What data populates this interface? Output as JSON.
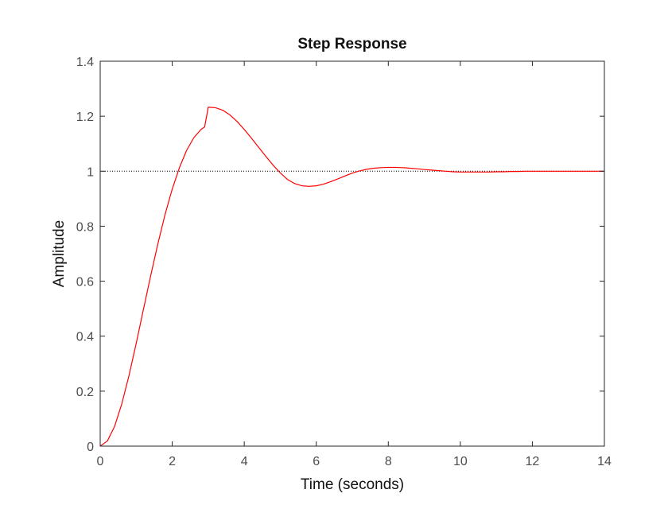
{
  "colors": {
    "background": "#ffffff",
    "axes": "#262626",
    "tick_text": "#4d4d4d",
    "response_line": "#ff0000",
    "reference_line": "#000000"
  },
  "chart_data": {
    "type": "line",
    "title": "Step Response",
    "xlabel": "Time (seconds)",
    "ylabel": "Amplitude",
    "xlim": [
      0,
      14
    ],
    "ylim": [
      0,
      1.4
    ],
    "x_ticks": [
      0,
      2,
      4,
      6,
      8,
      10,
      12,
      14
    ],
    "x_tick_labels": [
      "0",
      "2",
      "4",
      "6",
      "8",
      "10",
      "12",
      "14"
    ],
    "y_ticks": [
      0,
      0.2,
      0.4,
      0.6,
      0.8,
      1,
      1.2,
      1.4
    ],
    "y_tick_labels": [
      "0",
      "0.2",
      "0.4",
      "0.6",
      "0.8",
      "1",
      "1.2",
      "1.4"
    ],
    "grid": false,
    "legend": "none",
    "series": [
      {
        "color": "#ff0000",
        "style": "solid",
        "x": [
          0,
          0.2,
          0.4,
          0.6,
          0.8,
          1.0,
          1.2,
          1.4,
          1.6,
          1.8,
          2.0,
          2.2,
          2.4,
          2.6,
          2.8,
          2.9,
          3.0,
          3.2,
          3.4,
          3.6,
          3.8,
          4.0,
          4.2,
          4.4,
          4.6,
          4.8,
          5.0,
          5.2,
          5.4,
          5.6,
          5.8,
          6.0,
          6.2,
          6.4,
          6.6,
          6.8,
          7.0,
          7.2,
          7.4,
          7.6,
          7.8,
          8.0,
          8.2,
          8.4,
          8.6,
          8.8,
          9.0,
          9.2,
          9.4,
          9.6,
          9.8,
          10.0,
          10.2,
          10.4,
          10.6,
          10.8,
          11.0,
          11.2,
          11.4,
          11.6,
          11.8,
          12.0,
          12.2,
          12.4,
          12.6,
          12.8,
          13.0,
          13.2,
          13.4,
          13.6,
          13.8,
          14.0
        ],
        "y": [
          0,
          0.019,
          0.072,
          0.154,
          0.257,
          0.374,
          0.497,
          0.619,
          0.735,
          0.842,
          0.935,
          1.013,
          1.076,
          1.122,
          1.152,
          1.161,
          1.233,
          1.231,
          1.222,
          1.205,
          1.181,
          1.152,
          1.12,
          1.087,
          1.054,
          1.022,
          0.994,
          0.97,
          0.955,
          0.947,
          0.945,
          0.947,
          0.953,
          0.962,
          0.972,
          0.983,
          0.993,
          1.001,
          1.007,
          1.011,
          1.013,
          1.014,
          1.014,
          1.013,
          1.011,
          1.009,
          1.006,
          1.004,
          1.002,
          1.0,
          0.998,
          0.997,
          0.997,
          0.997,
          0.997,
          0.997,
          0.998,
          0.998,
          0.999,
          0.999,
          1.0,
          1.0,
          1.0,
          1.0,
          1.0,
          1.0,
          1.0,
          1.0,
          1.0,
          1.0,
          1.0,
          1.0
        ]
      }
    ],
    "reference_lines": [
      {
        "y": 1,
        "style": "dotted",
        "color": "#000000"
      }
    ]
  }
}
